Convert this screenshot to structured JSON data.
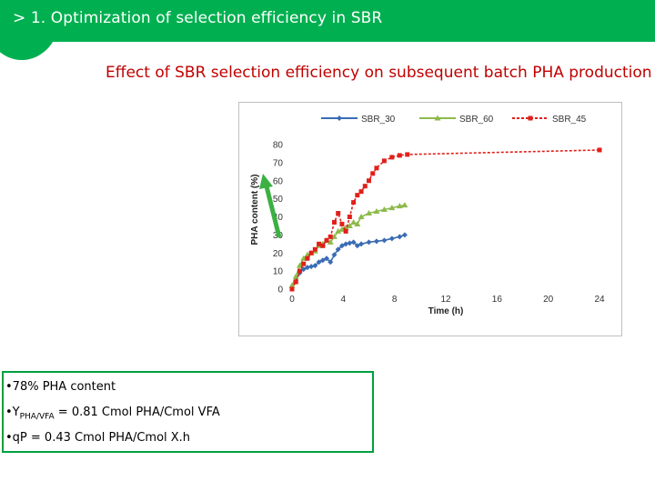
{
  "header": {
    "title": "> 1. Optimization of selection efficiency in SBR"
  },
  "slide": {
    "title": "Effect of SBR selection efficiency on subsequent batch PHA production"
  },
  "colors": {
    "brand_green": "#00b050",
    "title_red": "#c00000",
    "sbr30": "#3a6cb4",
    "sbr60": "#8dba4a",
    "sbr45": "#e0201a",
    "arrow": "#3cb043"
  },
  "chart_data": {
    "type": "line",
    "title": "",
    "xlabel": "Time (h)",
    "ylabel": "PHA content (%)",
    "xlim": [
      0,
      24
    ],
    "ylim": [
      0,
      80
    ],
    "xticks": [
      0,
      4,
      8,
      12,
      16,
      20,
      24
    ],
    "yticks": [
      0,
      10,
      20,
      30,
      40,
      50,
      60,
      70,
      80
    ],
    "legend_position": "top",
    "grid": false,
    "series": [
      {
        "name": "SBR_30",
        "color": "#3a6cb4",
        "marker": "diamond",
        "x": [
          0,
          0.3,
          0.6,
          0.9,
          1.2,
          1.5,
          1.8,
          2.1,
          2.4,
          2.7,
          3.0,
          3.3,
          3.6,
          3.9,
          4.2,
          4.5,
          4.8,
          5.1,
          5.4,
          6.0,
          6.6,
          7.2,
          7.8,
          8.4,
          8.8
        ],
        "y": [
          1,
          5,
          9,
          11,
          12,
          12.5,
          13,
          15,
          16,
          17,
          15,
          19,
          22,
          24,
          25,
          25.5,
          26,
          24,
          25,
          26,
          26.5,
          27,
          28,
          29,
          30
        ]
      },
      {
        "name": "SBR_60",
        "color": "#8dba4a",
        "marker": "triangle",
        "x": [
          0,
          0.3,
          0.6,
          0.9,
          1.2,
          1.5,
          1.8,
          2.1,
          2.4,
          2.7,
          3.0,
          3.3,
          3.6,
          3.9,
          4.2,
          4.5,
          4.8,
          5.1,
          5.4,
          6.0,
          6.6,
          7.2,
          7.8,
          8.4,
          8.8
        ],
        "y": [
          2,
          7,
          13,
          17,
          19,
          20,
          21,
          24,
          25,
          27,
          26,
          29,
          32,
          33,
          34,
          35,
          37,
          36,
          40,
          42,
          43,
          44,
          45,
          46,
          46.5
        ]
      },
      {
        "name": "SBR_45",
        "color": "#e0201a",
        "marker": "square",
        "x": [
          0,
          0.3,
          0.6,
          0.9,
          1.2,
          1.5,
          1.8,
          2.1,
          2.4,
          2.7,
          3.0,
          3.3,
          3.6,
          3.9,
          4.2,
          4.5,
          4.8,
          5.1,
          5.4,
          5.7,
          6.0,
          6.3,
          6.6,
          7.2,
          7.8,
          8.4,
          9.0,
          24
        ],
        "y": [
          0,
          4,
          10,
          14,
          17,
          20,
          22,
          25,
          24,
          27,
          29,
          37,
          42,
          36,
          32,
          40,
          48,
          52,
          54,
          57,
          60,
          64,
          67,
          71,
          73,
          74,
          74.5,
          77
        ]
      }
    ]
  },
  "notes": {
    "line1": "•78% PHA content",
    "line2_prefix": "•Y",
    "line2_sub": "PHA/VFA",
    "line2_suffix": " = 0.81 Cmol PHA/Cmol VFA",
    "line3": "•q",
    "line3_sub": "P",
    "line3_suffix": " = 0.43 Cmol PHA/Cmol X.h"
  }
}
